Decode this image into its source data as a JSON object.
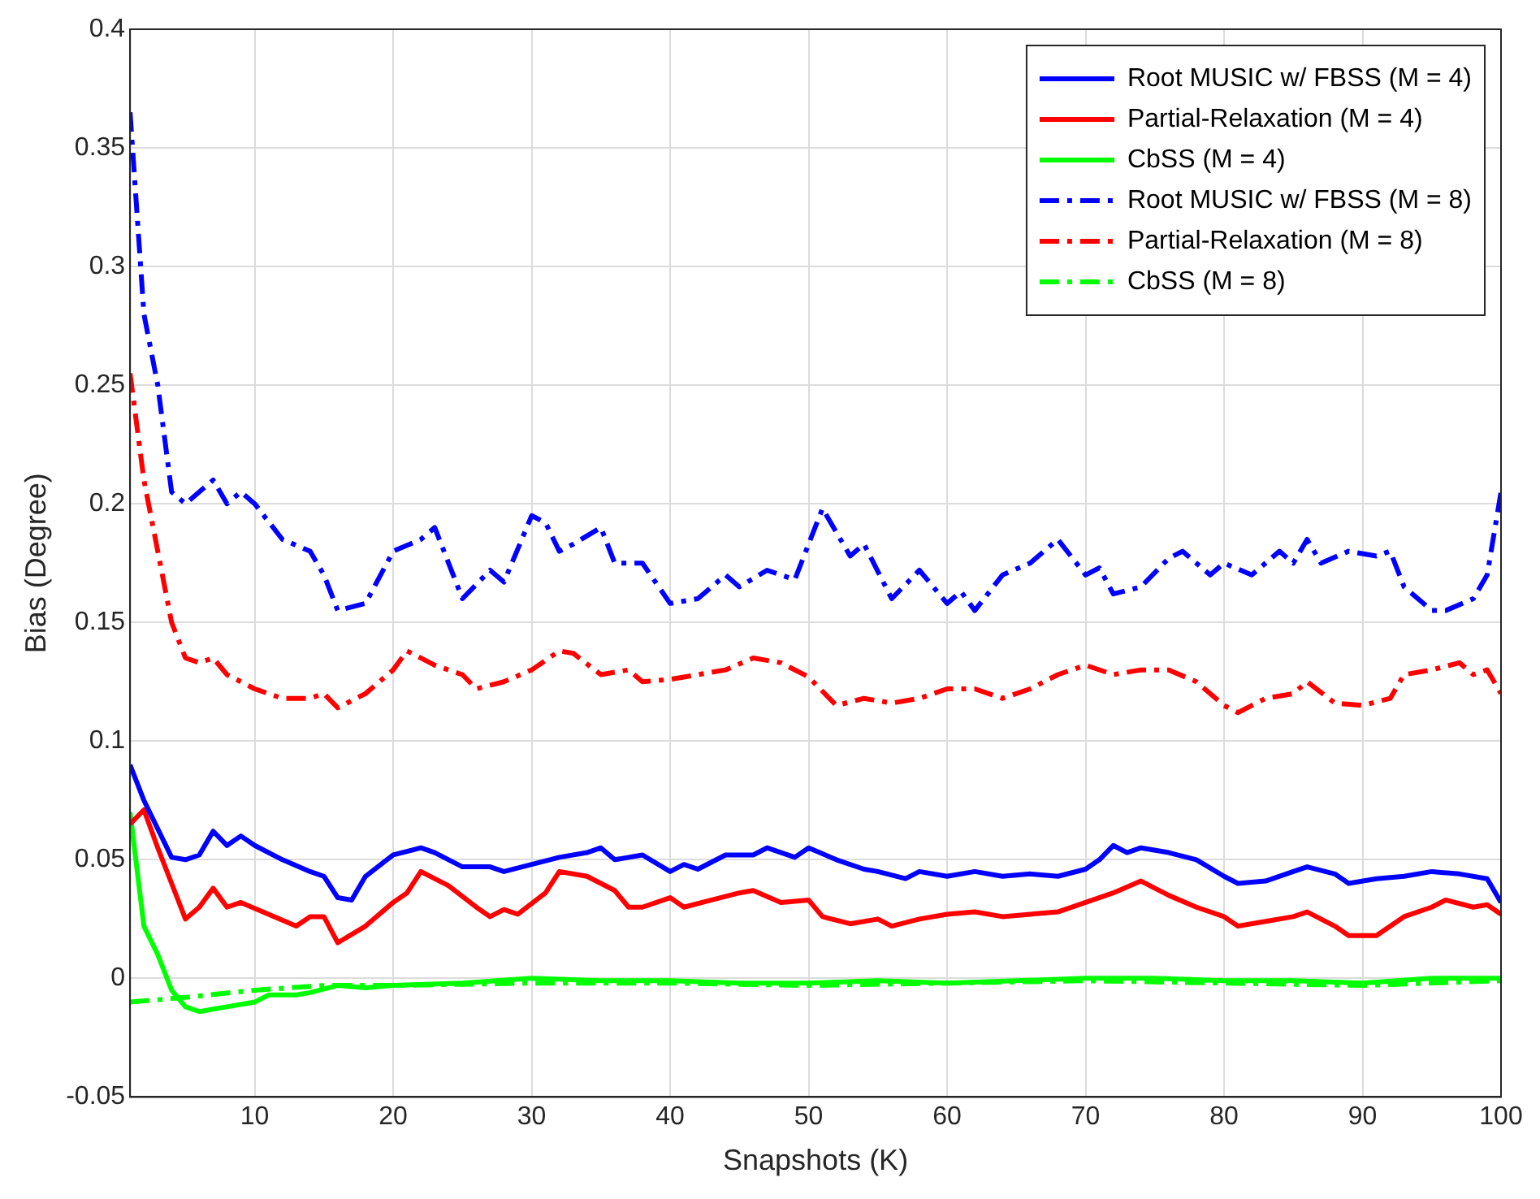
{
  "chart_data": {
    "type": "line",
    "xlabel": "Snapshots (K)",
    "ylabel": "Bias (Degree)",
    "xlim": [
      1,
      100
    ],
    "xticks": [
      10,
      20,
      30,
      40,
      50,
      60,
      70,
      80,
      90,
      100
    ],
    "ylim": [
      -0.05,
      0.4
    ],
    "yticks": [
      -0.05,
      0,
      0.05,
      0.1,
      0.15,
      0.2,
      0.25,
      0.3,
      0.35,
      0.4
    ],
    "grid": true,
    "legend": "top right",
    "marker": "none",
    "series": [
      {
        "name": "Root MUSIC w/ FBSS (M = 4)",
        "color": "#0000ff",
        "line_style": "solid",
        "x": [
          1,
          2,
          4,
          5,
          6,
          7,
          8,
          9,
          10,
          12,
          14,
          15,
          16,
          17,
          18,
          20,
          22,
          23,
          25,
          27,
          28,
          30,
          32,
          34,
          35,
          36,
          38,
          40,
          41,
          42,
          44,
          46,
          47,
          49,
          50,
          52,
          54,
          55,
          57,
          58,
          60,
          62,
          64,
          66,
          68,
          70,
          71,
          72,
          73,
          74,
          76,
          78,
          80,
          81,
          83,
          85,
          86,
          88,
          89,
          91,
          93,
          95,
          97,
          99,
          100
        ],
        "values": [
          0.09,
          0.075,
          0.051,
          0.05,
          0.052,
          0.062,
          0.056,
          0.06,
          0.056,
          0.05,
          0.045,
          0.043,
          0.034,
          0.033,
          0.043,
          0.052,
          0.055,
          0.053,
          0.047,
          0.047,
          0.045,
          0.048,
          0.051,
          0.053,
          0.055,
          0.05,
          0.052,
          0.045,
          0.048,
          0.046,
          0.052,
          0.052,
          0.055,
          0.051,
          0.055,
          0.05,
          0.046,
          0.045,
          0.042,
          0.045,
          0.043,
          0.045,
          0.043,
          0.044,
          0.043,
          0.046,
          0.05,
          0.056,
          0.053,
          0.055,
          0.053,
          0.05,
          0.043,
          0.04,
          0.041,
          0.045,
          0.047,
          0.044,
          0.04,
          0.042,
          0.043,
          0.045,
          0.044,
          0.042,
          0.032
        ]
      },
      {
        "name": "Partial-Relaxation (M = 4)",
        "color": "#ff0000",
        "line_style": "solid",
        "x": [
          1,
          2,
          3,
          4,
          5,
          6,
          7,
          8,
          9,
          11,
          13,
          14,
          15,
          16,
          18,
          20,
          21,
          22,
          24,
          26,
          27,
          28,
          29,
          31,
          32,
          34,
          35,
          36,
          37,
          38,
          40,
          41,
          43,
          45,
          46,
          48,
          50,
          51,
          53,
          55,
          56,
          58,
          60,
          62,
          64,
          66,
          68,
          70,
          72,
          74,
          76,
          78,
          80,
          81,
          83,
          85,
          86,
          88,
          89,
          91,
          93,
          95,
          96,
          98,
          99,
          100
        ],
        "values": [
          0.065,
          0.071,
          0.055,
          0.04,
          0.025,
          0.03,
          0.038,
          0.03,
          0.032,
          0.027,
          0.022,
          0.026,
          0.026,
          0.015,
          0.022,
          0.032,
          0.036,
          0.045,
          0.039,
          0.03,
          0.026,
          0.029,
          0.027,
          0.036,
          0.045,
          0.043,
          0.04,
          0.037,
          0.03,
          0.03,
          0.034,
          0.03,
          0.033,
          0.036,
          0.037,
          0.032,
          0.033,
          0.026,
          0.023,
          0.025,
          0.022,
          0.025,
          0.027,
          0.028,
          0.026,
          0.027,
          0.028,
          0.032,
          0.036,
          0.041,
          0.035,
          0.03,
          0.026,
          0.022,
          0.024,
          0.026,
          0.028,
          0.022,
          0.018,
          0.018,
          0.026,
          0.03,
          0.033,
          0.03,
          0.031,
          0.027
        ]
      },
      {
        "name": "CbSS (M = 4)",
        "color": "#00ff00",
        "line_style": "solid",
        "x": [
          1,
          2,
          3,
          4,
          5,
          6,
          7,
          8,
          10,
          11,
          13,
          14,
          16,
          18,
          20,
          25,
          30,
          35,
          40,
          45,
          50,
          55,
          60,
          65,
          70,
          75,
          80,
          85,
          90,
          95,
          100
        ],
        "values": [
          0.07,
          0.022,
          0.01,
          -0.005,
          -0.012,
          -0.014,
          -0.013,
          -0.012,
          -0.01,
          -0.007,
          -0.007,
          -0.006,
          -0.003,
          -0.004,
          -0.003,
          -0.002,
          0,
          -0.001,
          -0.001,
          -0.002,
          -0.002,
          -0.001,
          -0.002,
          -0.001,
          0,
          0,
          -0.001,
          -0.001,
          -0.002,
          0,
          0
        ]
      },
      {
        "name": "Root MUSIC w/ FBSS (M = 8)",
        "color": "#0000ff",
        "line_style": "dashed",
        "x": [
          1,
          2,
          3,
          4,
          5,
          7,
          8,
          9,
          10,
          12,
          14,
          15,
          16,
          18,
          20,
          22,
          23,
          25,
          27,
          28,
          30,
          31,
          32,
          33,
          35,
          36,
          38,
          40,
          42,
          44,
          45,
          47,
          49,
          51,
          53,
          54,
          56,
          58,
          60,
          61,
          62,
          64,
          66,
          68,
          70,
          71,
          72,
          74,
          76,
          77,
          79,
          80,
          82,
          84,
          85,
          86,
          87,
          89,
          91,
          92,
          93,
          95,
          96,
          98,
          99,
          100
        ],
        "values": [
          0.365,
          0.28,
          0.25,
          0.205,
          0.2,
          0.21,
          0.2,
          0.205,
          0.2,
          0.185,
          0.18,
          0.17,
          0.155,
          0.158,
          0.18,
          0.185,
          0.19,
          0.16,
          0.172,
          0.167,
          0.195,
          0.192,
          0.18,
          0.183,
          0.19,
          0.175,
          0.175,
          0.158,
          0.16,
          0.17,
          0.165,
          0.172,
          0.168,
          0.198,
          0.178,
          0.183,
          0.16,
          0.172,
          0.158,
          0.163,
          0.155,
          0.17,
          0.175,
          0.185,
          0.17,
          0.173,
          0.162,
          0.165,
          0.177,
          0.18,
          0.17,
          0.175,
          0.17,
          0.18,
          0.175,
          0.185,
          0.175,
          0.18,
          0.178,
          0.18,
          0.165,
          0.155,
          0.155,
          0.16,
          0.17,
          0.205
        ]
      },
      {
        "name": "Partial-Relaxation (M = 8)",
        "color": "#ff0000",
        "line_style": "dashed",
        "x": [
          1,
          2,
          3,
          4,
          5,
          6,
          7,
          8,
          10,
          12,
          14,
          15,
          16,
          18,
          20,
          21,
          23,
          25,
          26,
          28,
          30,
          32,
          33,
          35,
          37,
          38,
          40,
          42,
          44,
          46,
          48,
          50,
          52,
          54,
          56,
          58,
          60,
          62,
          64,
          66,
          68,
          70,
          72,
          74,
          76,
          78,
          80,
          81,
          83,
          85,
          86,
          88,
          90,
          92,
          93,
          95,
          97,
          98,
          99,
          100
        ],
        "values": [
          0.255,
          0.21,
          0.18,
          0.15,
          0.135,
          0.133,
          0.135,
          0.128,
          0.122,
          0.118,
          0.118,
          0.12,
          0.114,
          0.12,
          0.13,
          0.138,
          0.132,
          0.128,
          0.122,
          0.125,
          0.13,
          0.138,
          0.137,
          0.128,
          0.13,
          0.125,
          0.126,
          0.128,
          0.13,
          0.135,
          0.133,
          0.127,
          0.115,
          0.118,
          0.116,
          0.118,
          0.122,
          0.122,
          0.118,
          0.122,
          0.128,
          0.132,
          0.128,
          0.13,
          0.13,
          0.125,
          0.115,
          0.112,
          0.118,
          0.12,
          0.125,
          0.116,
          0.115,
          0.118,
          0.128,
          0.13,
          0.133,
          0.128,
          0.13,
          0.12
        ]
      },
      {
        "name": "CbSS (M = 8)",
        "color": "#00ff00",
        "line_style": "dashed",
        "x": [
          1,
          5,
          10,
          15,
          20,
          30,
          40,
          50,
          60,
          70,
          80,
          90,
          100
        ],
        "values": [
          -0.01,
          -0.008,
          -0.005,
          -0.003,
          -0.003,
          -0.002,
          -0.002,
          -0.003,
          -0.002,
          -0.001,
          -0.002,
          -0.003,
          -0.001
        ]
      }
    ]
  }
}
